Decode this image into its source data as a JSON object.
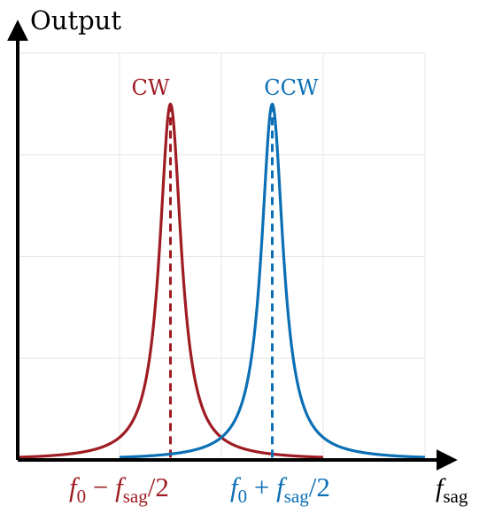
{
  "chart_data": {
    "type": "line",
    "ylabel": "Output",
    "xlabel_main": "f",
    "xlabel_sub": "sag",
    "xlim": [
      0,
      4
    ],
    "ylim": [
      0,
      4
    ],
    "grid": true,
    "series": [
      {
        "name": "CW",
        "color": "#9e1c22",
        "center": 1.5,
        "halfwidth": 0.13,
        "peak": 3.5,
        "x": [
          0,
          0.5,
          0.9,
          1.1,
          1.3,
          1.4,
          1.5,
          1.6,
          1.7,
          1.9,
          2.1,
          2.5,
          3.0
        ],
        "y": [
          0.06,
          0.21,
          0.56,
          1.06,
          2.34,
          3.1,
          3.5,
          3.1,
          2.34,
          1.06,
          0.56,
          0.21,
          0.09
        ]
      },
      {
        "name": "CCW",
        "color": "#0b6fb5",
        "center": 2.5,
        "halfwidth": 0.13,
        "peak": 3.5,
        "x": [
          1.0,
          1.5,
          1.9,
          2.1,
          2.3,
          2.4,
          2.5,
          2.6,
          2.7,
          2.9,
          3.1,
          3.5,
          4.0
        ],
        "y": [
          0.09,
          0.21,
          0.56,
          1.06,
          2.34,
          3.1,
          3.5,
          3.1,
          2.34,
          1.06,
          0.56,
          0.21,
          0.06
        ]
      }
    ],
    "tick_labels": [
      {
        "name": "cw-tick-label",
        "color": "#9e1c22",
        "f": "f",
        "sub0": "0",
        "op": " − ",
        "f2": "f",
        "sub_sag": "sag",
        "tail": "/2"
      },
      {
        "name": "ccw-tick-label",
        "color": "#0b6fb5",
        "f": "f",
        "sub0": "0",
        "op": " + ",
        "f2": "f",
        "sub_sag": "sag",
        "tail": "/2"
      }
    ]
  }
}
